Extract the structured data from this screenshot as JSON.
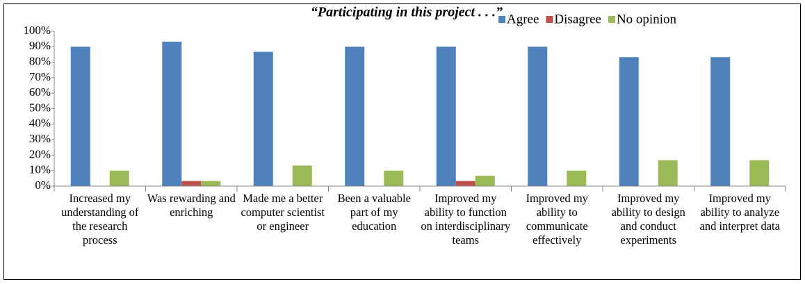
{
  "chart_data": {
    "type": "bar",
    "title": "“Participating in this project . . .”",
    "categories": [
      "Increased my understanding of the research process",
      "Was rewarding and enriching",
      "Made me a better computer scientist or engineer",
      "Been a valuable part of my education",
      "Improved my ability to function on interdisciplinary teams",
      "Improved my ability to communicate effectively",
      "Improved my ability to design and conduct experiments",
      "Improved my ability to analyze and interpret data"
    ],
    "series": [
      {
        "name": "Agree",
        "color": "#4f81bd",
        "values": [
          90,
          93.3,
          86.7,
          90,
          90,
          90,
          83.3,
          83.3
        ]
      },
      {
        "name": "Disagree",
        "color": "#c0504d",
        "values": [
          0,
          3.3,
          0,
          0,
          3.3,
          0,
          0,
          0
        ]
      },
      {
        "name": "No opinion",
        "color": "#9bbb59",
        "values": [
          10,
          3.3,
          13.3,
          10,
          6.7,
          10,
          16.7,
          16.7
        ]
      }
    ],
    "ylim": [
      0,
      100
    ],
    "yticks": [
      {
        "value": 0,
        "label": "0%"
      },
      {
        "value": 10,
        "label": "10%"
      },
      {
        "value": 20,
        "label": "20%"
      },
      {
        "value": 30,
        "label": "30%"
      },
      {
        "value": 40,
        "label": "40%"
      },
      {
        "value": 50,
        "label": "50%"
      },
      {
        "value": 60,
        "label": "60%"
      },
      {
        "value": 70,
        "label": "70%"
      },
      {
        "value": 80,
        "label": "80%"
      },
      {
        "value": 90,
        "label": "90%"
      },
      {
        "value": 100,
        "label": "100%"
      }
    ],
    "legend": "top-right"
  }
}
